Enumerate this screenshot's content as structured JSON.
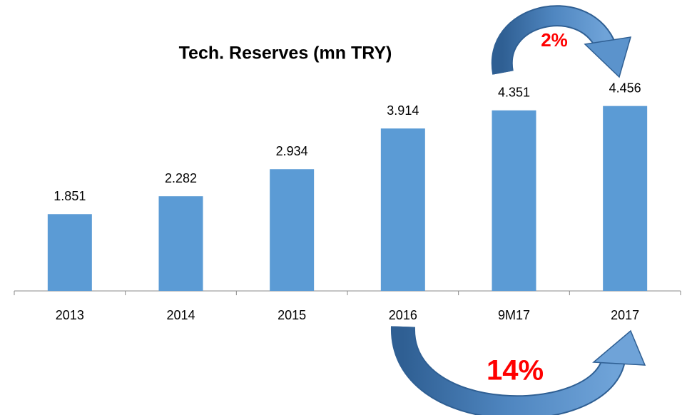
{
  "chart_data": {
    "type": "bar",
    "title": "Tech. Reserves (mn TRY)",
    "categories": [
      "2013",
      "2014",
      "2015",
      "2016",
      "9M17",
      "2017"
    ],
    "values": [
      1851,
      2282,
      2934,
      3914,
      4351,
      4456
    ],
    "value_labels": [
      "1.851",
      "2.282",
      "2.934",
      "3.914",
      "4.351",
      "4.456"
    ],
    "color": "#5b9bd5",
    "ylim": [
      0,
      5000
    ],
    "annotations": [
      {
        "text": "2%",
        "color": "#ff0000"
      },
      {
        "text": "14%",
        "color": "#ff0000"
      }
    ]
  }
}
